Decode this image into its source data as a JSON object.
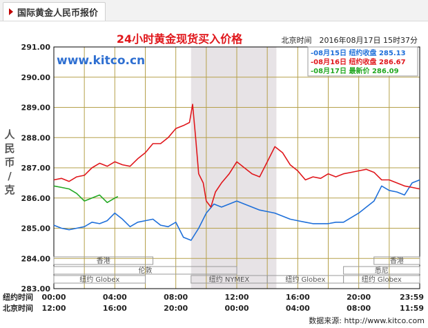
{
  "tab": {
    "label": "国际黄金人民币报价"
  },
  "chart_data": {
    "type": "line",
    "title": "24小时黄金现货买入价格",
    "time_label": "北京时间　2016年08月17日 15时37分",
    "watermark": "www.kitco.cn",
    "ylabel": "人民币/克",
    "ylim": [
      283.0,
      291.0
    ],
    "yticks": [
      "283.00",
      "284.00",
      "285.00",
      "286.00",
      "287.00",
      "288.00",
      "289.00",
      "290.00",
      "291.00"
    ],
    "xlim": [
      0,
      24
    ],
    "x_rows": [
      {
        "label": "纽约时间",
        "ticks": [
          "00:00",
          "04:00",
          "08:00",
          "12:00",
          "16:00",
          "20:00",
          "23:59"
        ]
      },
      {
        "label": "北京时间",
        "ticks": [
          "12:00",
          "16:00",
          "20:00",
          "00:00",
          "04:00",
          "08:00",
          "11:59"
        ]
      }
    ],
    "sessions": [
      {
        "label": "香港",
        "start": 0,
        "end": 6.5,
        "row": 0
      },
      {
        "label": "香港",
        "start": 21,
        "end": 24,
        "row": 0
      },
      {
        "label": "伦敦",
        "start": 0,
        "end": 12,
        "row": 1
      },
      {
        "label": "悉尼",
        "start": 19,
        "end": 24,
        "row": 1
      },
      {
        "label": "纽约 Globex",
        "start": 0,
        "end": 6,
        "row": 2
      },
      {
        "label": "纽约 NYMEX",
        "start": 9,
        "end": 14,
        "row": 2
      },
      {
        "label": "纽约 Globex",
        "start": 14,
        "end": 19,
        "row": 2
      },
      {
        "label": "纽约 Globex",
        "start": 19,
        "end": 24,
        "row": 2
      }
    ],
    "shaded_range": [
      9,
      14.6
    ],
    "series": [
      {
        "name": "08月15日 纽约收盘 285.13",
        "color": "#1e6fd9",
        "points": [
          [
            0,
            285.1
          ],
          [
            0.5,
            285.0
          ],
          [
            1,
            284.95
          ],
          [
            1.5,
            285.0
          ],
          [
            2,
            285.05
          ],
          [
            2.5,
            285.2
          ],
          [
            3,
            285.15
          ],
          [
            3.5,
            285.25
          ],
          [
            4,
            285.5
          ],
          [
            4.5,
            285.3
          ],
          [
            5,
            285.05
          ],
          [
            5.5,
            285.2
          ],
          [
            6,
            285.25
          ],
          [
            6.5,
            285.3
          ],
          [
            7,
            285.1
          ],
          [
            7.5,
            285.05
          ],
          [
            8,
            285.2
          ],
          [
            8.5,
            284.7
          ],
          [
            9,
            284.6
          ],
          [
            9.5,
            285.0
          ],
          [
            10,
            285.5
          ],
          [
            10.5,
            285.8
          ],
          [
            11,
            285.7
          ],
          [
            11.5,
            285.8
          ],
          [
            12,
            285.9
          ],
          [
            12.5,
            285.8
          ],
          [
            13,
            285.7
          ],
          [
            13.5,
            285.6
          ],
          [
            14,
            285.55
          ],
          [
            14.5,
            285.5
          ],
          [
            15,
            285.4
          ],
          [
            15.5,
            285.3
          ],
          [
            16,
            285.25
          ],
          [
            16.5,
            285.2
          ],
          [
            17,
            285.15
          ],
          [
            17.5,
            285.15
          ],
          [
            18,
            285.15
          ],
          [
            18.5,
            285.2
          ],
          [
            19,
            285.2
          ],
          [
            19.5,
            285.35
          ],
          [
            20,
            285.5
          ],
          [
            20.5,
            285.7
          ],
          [
            21,
            285.9
          ],
          [
            21.5,
            286.4
          ],
          [
            22,
            286.25
          ],
          [
            22.5,
            286.2
          ],
          [
            23,
            286.1
          ],
          [
            23.5,
            286.5
          ],
          [
            24,
            286.6
          ]
        ]
      },
      {
        "name": "08月16日 纽约收盘 286.67",
        "color": "#e0161b",
        "points": [
          [
            0,
            286.6
          ],
          [
            0.5,
            286.65
          ],
          [
            1,
            286.55
          ],
          [
            1.5,
            286.7
          ],
          [
            2,
            286.75
          ],
          [
            2.5,
            287.0
          ],
          [
            3,
            287.15
          ],
          [
            3.5,
            287.05
          ],
          [
            4,
            287.2
          ],
          [
            4.5,
            287.1
          ],
          [
            5,
            287.05
          ],
          [
            5.5,
            287.3
          ],
          [
            6,
            287.5
          ],
          [
            6.5,
            287.8
          ],
          [
            7,
            287.8
          ],
          [
            7.5,
            288.0
          ],
          [
            8,
            288.3
          ],
          [
            8.5,
            288.4
          ],
          [
            8.9,
            288.5
          ],
          [
            9.1,
            289.1
          ],
          [
            9.3,
            288.0
          ],
          [
            9.5,
            286.8
          ],
          [
            9.8,
            286.5
          ],
          [
            10,
            285.9
          ],
          [
            10.3,
            285.7
          ],
          [
            10.6,
            286.2
          ],
          [
            11,
            286.5
          ],
          [
            11.5,
            286.8
          ],
          [
            12,
            287.2
          ],
          [
            12.5,
            287.0
          ],
          [
            13,
            286.8
          ],
          [
            13.5,
            286.7
          ],
          [
            14,
            287.2
          ],
          [
            14.5,
            287.7
          ],
          [
            15,
            287.5
          ],
          [
            15.5,
            287.1
          ],
          [
            16,
            286.9
          ],
          [
            16.5,
            286.6
          ],
          [
            17,
            286.7
          ],
          [
            17.5,
            286.65
          ],
          [
            18,
            286.8
          ],
          [
            18.5,
            286.7
          ],
          [
            19,
            286.8
          ],
          [
            19.5,
            286.85
          ],
          [
            20,
            286.9
          ],
          [
            20.5,
            286.95
          ],
          [
            21,
            286.85
          ],
          [
            21.5,
            286.6
          ],
          [
            22,
            286.6
          ],
          [
            22.5,
            286.5
          ],
          [
            23,
            286.4
          ],
          [
            23.5,
            286.35
          ],
          [
            24,
            286.3
          ]
        ]
      },
      {
        "name": "08月17日 最新价 286.09",
        "color": "#22a822",
        "points": [
          [
            0,
            286.4
          ],
          [
            0.5,
            286.35
          ],
          [
            1,
            286.3
          ],
          [
            1.5,
            286.15
          ],
          [
            2,
            285.9
          ],
          [
            2.5,
            286.0
          ],
          [
            3,
            286.1
          ],
          [
            3.5,
            285.85
          ],
          [
            4,
            286.0
          ],
          [
            4.2,
            286.05
          ]
        ]
      }
    ],
    "source": "数据来源: http://www.kitco.com"
  }
}
